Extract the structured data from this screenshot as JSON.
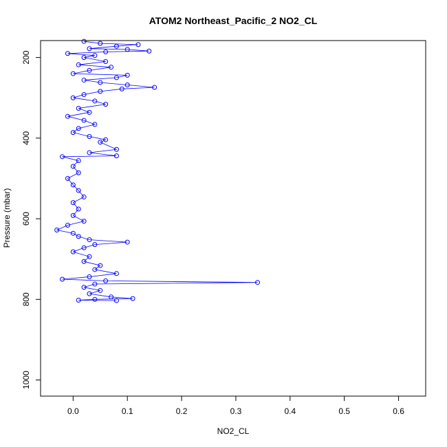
{
  "chart_data": {
    "type": "scatter",
    "title": "ATOM2 Northeast_Pacific_2 NO2_CL",
    "xlabel": "NO2_CL",
    "ylabel": "Pressure (mbar)",
    "xlim": [
      -0.06,
      0.65
    ],
    "ylim": [
      1040,
      158
    ],
    "y_reversed": true,
    "x_ticks": [
      0.0,
      0.1,
      0.2,
      0.3,
      0.4,
      0.5,
      0.6
    ],
    "x_tick_labels": [
      "0.0",
      "0.1",
      "0.2",
      "0.3",
      "0.4",
      "0.5",
      "0.6"
    ],
    "y_ticks": [
      200,
      400,
      600,
      800,
      1000
    ],
    "y_tick_labels": [
      "200",
      "400",
      "600",
      "800",
      "1000"
    ],
    "grid": false,
    "legend": "none",
    "marker": "open-circle",
    "connected_line": true,
    "series": [
      {
        "color": "#0000ff",
        "points": [
          [
            0.02,
            160
          ],
          [
            0.05,
            165
          ],
          [
            0.12,
            168
          ],
          [
            0.08,
            172
          ],
          [
            0.03,
            178
          ],
          [
            0.1,
            180
          ],
          [
            0.14,
            184
          ],
          [
            0.06,
            186
          ],
          [
            -0.01,
            190
          ],
          [
            0.04,
            195
          ],
          [
            0.02,
            200
          ],
          [
            0.06,
            210
          ],
          [
            0.01,
            218
          ],
          [
            0.07,
            224
          ],
          [
            0.03,
            232
          ],
          [
            0.0,
            240
          ],
          [
            0.1,
            244
          ],
          [
            0.08,
            250
          ],
          [
            0.02,
            256
          ],
          [
            0.05,
            262
          ],
          [
            0.1,
            268
          ],
          [
            0.15,
            274
          ],
          [
            0.09,
            278
          ],
          [
            0.05,
            284
          ],
          [
            0.02,
            292
          ],
          [
            0.0,
            300
          ],
          [
            0.04,
            308
          ],
          [
            0.06,
            316
          ],
          [
            0.01,
            326
          ],
          [
            0.03,
            336
          ],
          [
            -0.01,
            346
          ],
          [
            0.02,
            356
          ],
          [
            0.04,
            366
          ],
          [
            0.01,
            376
          ],
          [
            0.0,
            386
          ],
          [
            0.03,
            396
          ],
          [
            0.06,
            404
          ],
          [
            0.05,
            410
          ],
          [
            0.08,
            428
          ],
          [
            0.03,
            436
          ],
          [
            0.08,
            444
          ],
          [
            -0.02,
            446
          ],
          [
            0.01,
            456
          ],
          [
            0.0,
            470
          ],
          [
            0.01,
            486
          ],
          [
            -0.01,
            500
          ],
          [
            0.0,
            516
          ],
          [
            0.01,
            530
          ],
          [
            0.02,
            546
          ],
          [
            0.0,
            560
          ],
          [
            0.01,
            576
          ],
          [
            0.0,
            592
          ],
          [
            0.02,
            606
          ],
          [
            -0.01,
            616
          ],
          [
            -0.03,
            628
          ],
          [
            0.0,
            636
          ],
          [
            0.01,
            644
          ],
          [
            0.03,
            652
          ],
          [
            0.1,
            658
          ],
          [
            0.04,
            664
          ],
          [
            0.02,
            672
          ],
          [
            0.0,
            682
          ],
          [
            0.03,
            694
          ],
          [
            0.02,
            706
          ],
          [
            0.05,
            716
          ],
          [
            0.04,
            726
          ],
          [
            0.08,
            736
          ],
          [
            0.03,
            744
          ],
          [
            -0.02,
            750
          ],
          [
            0.06,
            754
          ],
          [
            0.34,
            758
          ],
          [
            0.04,
            762
          ],
          [
            0.02,
            770
          ],
          [
            0.05,
            778
          ],
          [
            0.03,
            786
          ],
          [
            0.07,
            794
          ],
          [
            0.11,
            798
          ],
          [
            0.04,
            800
          ],
          [
            0.01,
            802
          ],
          [
            0.08,
            803
          ]
        ]
      }
    ]
  }
}
